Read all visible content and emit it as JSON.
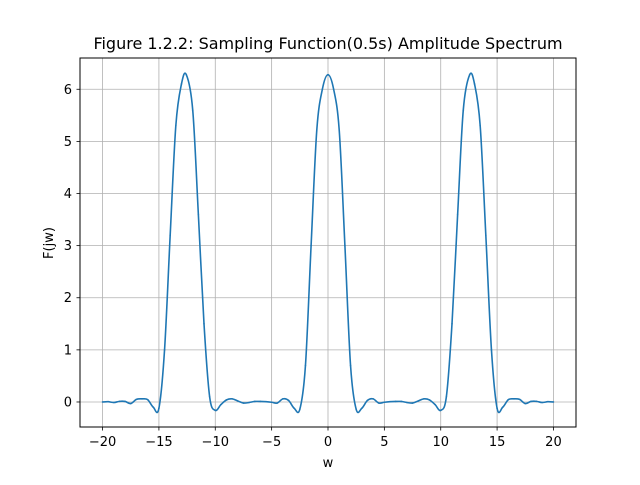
{
  "chart_data": {
    "type": "line",
    "title": "Figure 1.2.2: Sampling Function(0.5s) Amplitude Spectrum",
    "xlabel": "w",
    "ylabel": "F(jw)",
    "xlim": [
      -22,
      22
    ],
    "ylim": [
      -0.48,
      6.6
    ],
    "xticks": [
      -20,
      -15,
      -10,
      -5,
      0,
      5,
      10,
      15,
      20
    ],
    "xtick_labels": [
      "−20",
      "−15",
      "−10",
      "−5",
      "0",
      "5",
      "10",
      "15",
      "20"
    ],
    "yticks": [
      0,
      1,
      2,
      3,
      4,
      5,
      6
    ],
    "ytick_labels": [
      "0",
      "1",
      "2",
      "3",
      "4",
      "5",
      "6"
    ],
    "grid": true,
    "line_color": "#1f77b4",
    "grid_color": "#b0b0b0",
    "series": [
      {
        "x": [
          -20,
          -19.5,
          -19,
          -18.5,
          -18,
          -17.5,
          -17,
          -16.5,
          -16,
          -15.5,
          -15,
          -14.5,
          -14,
          -13.5,
          -13,
          -12.57,
          -12,
          -11.5,
          -11,
          -10.5,
          -10,
          -9.5,
          -9,
          -8.5,
          -8,
          -7.5,
          -7,
          -6.5,
          -6,
          -5.5,
          -5,
          -4.5,
          -4,
          -3.5,
          -3,
          -2.5,
          -2,
          -1.5,
          -1,
          -0.5,
          0,
          0.5,
          1,
          1.5,
          2,
          2.5,
          3,
          3.5,
          4,
          4.5,
          5,
          5.5,
          6,
          6.5,
          7,
          7.5,
          8,
          8.5,
          9,
          9.5,
          10,
          10.5,
          11,
          11.5,
          12,
          12.57,
          13,
          13.5,
          14,
          14.5,
          15,
          15.5,
          16,
          16.5,
          17,
          17.5,
          18,
          18.5,
          19,
          19.5,
          20
        ],
        "y": [
          0.0,
          0.005,
          -0.01,
          0.012,
          0.01,
          -0.03,
          0.05,
          0.06,
          0.045,
          -0.1,
          -0.12,
          1.0,
          3.2,
          5.3,
          6.1,
          6.28,
          5.6,
          3.6,
          1.5,
          0.1,
          -0.16,
          -0.05,
          0.04,
          0.06,
          0.02,
          -0.02,
          -0.01,
          0.01,
          0.01,
          0.005,
          -0.005,
          -0.02,
          0.06,
          0.03,
          -0.12,
          -0.14,
          0.7,
          3.0,
          5.2,
          6.0,
          6.28,
          6.0,
          5.2,
          3.0,
          0.7,
          -0.14,
          -0.12,
          0.03,
          0.06,
          -0.02,
          -0.005,
          0.005,
          0.01,
          0.01,
          -0.01,
          -0.02,
          0.02,
          0.06,
          0.04,
          -0.05,
          -0.16,
          0.1,
          1.5,
          3.6,
          5.6,
          6.28,
          6.1,
          5.3,
          3.2,
          1.0,
          -0.12,
          -0.1,
          0.045,
          0.06,
          0.05,
          -0.03,
          0.01,
          0.012,
          -0.01,
          0.005,
          0.0
        ]
      }
    ]
  }
}
